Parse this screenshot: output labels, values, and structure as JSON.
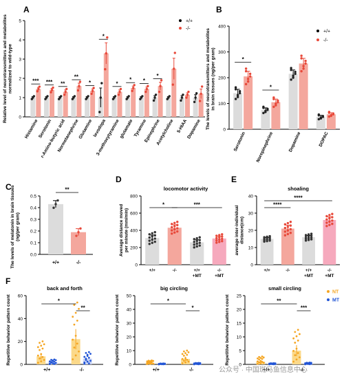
{
  "colors": {
    "wt": "#b3b3b3",
    "ko": "#e8493a",
    "nt": "#f5a623",
    "mt": "#2255d5",
    "mtfill": "#f6a9bd",
    "wtfill": "#dcdcdc",
    "ntfill": "#fbd98a"
  },
  "watermark": "公众号 · 中国斑马鱼信息中心",
  "chart_data": [
    {
      "panel": "A",
      "type": "bar",
      "ylabel": "Relative level of neurotransmitters and metabolites normalized to wild-type",
      "ylim": [
        0,
        5
      ],
      "yticks": [
        0,
        1,
        2,
        3,
        4,
        5
      ],
      "legend": [
        "+/+",
        "-/-"
      ],
      "categories": [
        "Histamine",
        "Serotonin",
        "r-Amino-butyric acid",
        "Normetanephrine",
        "Glutamine",
        "levodopa",
        "3-methoxytyramine",
        "glutamate",
        "Tyramine",
        "Epinephrine",
        "Acetylcholine",
        "5-HIAA",
        "Dopamine"
      ],
      "series": [
        {
          "name": "+/+",
          "values": [
            1,
            1,
            1,
            1,
            1,
            1,
            1,
            1,
            1,
            1,
            1,
            1,
            1
          ],
          "err": [
            0.05,
            0.05,
            0.05,
            0.05,
            0.05,
            0.5,
            0.05,
            0.05,
            0.05,
            0.1,
            0.05,
            0.1,
            0.15
          ]
        },
        {
          "name": "-/-",
          "values": [
            1.45,
            1.4,
            1.3,
            1.6,
            1.35,
            3.3,
            1.3,
            1.5,
            1.45,
            1.6,
            2.5,
            1.15,
            1.2
          ],
          "err": [
            0.08,
            0.08,
            0.1,
            0.15,
            0.1,
            0.55,
            0.1,
            0.1,
            0.1,
            0.2,
            0.55,
            0.1,
            0.25
          ]
        }
      ],
      "significance": [
        "***",
        "***",
        "**",
        "**",
        "*",
        "*",
        "*",
        "*",
        "*",
        "*",
        "",
        "",
        ""
      ]
    },
    {
      "panel": "B",
      "type": "bar",
      "ylabel": "The levels of neurotransmitters and metabolites in brain tissues (ng/per gram)",
      "ylim": [
        0,
        400
      ],
      "yticks": [
        0,
        100,
        200,
        300,
        400
      ],
      "legend": [
        "+/+",
        "-/-"
      ],
      "categories": [
        "Serotonin",
        "Norepinephrine",
        "Dopamine",
        "DOPAC"
      ],
      "series": [
        {
          "name": "+/+",
          "values": [
            140,
            75,
            215,
            48
          ],
          "err": [
            15,
            8,
            15,
            6
          ]
        },
        {
          "name": "-/-",
          "values": [
            205,
            105,
            255,
            58
          ],
          "err": [
            20,
            12,
            20,
            6
          ]
        }
      ],
      "significance": [
        "*",
        "*",
        "",
        ""
      ]
    },
    {
      "panel": "C",
      "type": "bar",
      "ylabel": "The levels of melatonin in brain tissues (ng/per gram)",
      "ylim": [
        0,
        0.5
      ],
      "yticks": [
        "0.0",
        "0.1",
        "0.2",
        "0.3",
        "0.4",
        "0.5"
      ],
      "categories": [
        "+/+",
        "-/-"
      ],
      "values": [
        0.43,
        0.19
      ],
      "err": [
        0.03,
        0.03
      ],
      "significance": "**"
    },
    {
      "panel": "D",
      "type": "bar",
      "title": "locomotor activity",
      "ylabel": "Average distance moved per minute (mm/min)",
      "ylim": [
        0,
        800
      ],
      "yticks": [
        0,
        200,
        400,
        600,
        800
      ],
      "categories": [
        "+/+",
        "-/-",
        "+/+ +MT",
        "-/- +MT"
      ],
      "values": [
        310,
        430,
        260,
        305
      ],
      "err": [
        35,
        35,
        30,
        25
      ],
      "significance": [
        {
          "from": 0,
          "to": 1,
          "label": "*"
        },
        {
          "from": 1,
          "to": 3,
          "label": "***"
        }
      ]
    },
    {
      "panel": "E",
      "type": "bar",
      "title": "shoaling",
      "ylabel": "average inter-individual distance(cm)",
      "ylim": [
        0,
        40
      ],
      "yticks": [
        0,
        10,
        20,
        30,
        40
      ],
      "categories": [
        "+/+",
        "-/-",
        "+/+ +MT",
        "-/- +MT"
      ],
      "values": [
        15,
        21,
        16,
        26
      ],
      "err": [
        0.8,
        2,
        1,
        1.8
      ],
      "significance": [
        {
          "from": 0,
          "to": 1,
          "label": "****"
        },
        {
          "from": 0,
          "to": 3,
          "label": "****"
        }
      ]
    },
    {
      "panel": "F",
      "type": "bar",
      "layout": "three-subplots",
      "ylabel": "Repetitive behavior pattern count",
      "legend": [
        "NT",
        "MT"
      ],
      "groups": [
        "+/+",
        "-/-"
      ],
      "subplots": [
        {
          "title": "back and forth",
          "ylim": [
            0,
            60
          ],
          "yticks": [
            0,
            20,
            40,
            60
          ],
          "NT": [
            7,
            22
          ],
          "MT": [
            2,
            5
          ],
          "significance": [
            {
              "label": "*"
            },
            {
              "label": "**"
            }
          ]
        },
        {
          "title": "big circling",
          "ylim": [
            0,
            50
          ],
          "yticks": [
            0,
            10,
            20,
            30,
            40,
            50
          ],
          "NT": [
            1,
            4
          ],
          "MT": [
            0.3,
            0.5
          ],
          "significance": [
            {
              "label": "*"
            },
            {
              "label": "*"
            }
          ]
        },
        {
          "title": "small circling",
          "ylim": [
            0,
            25
          ],
          "yticks": [
            0,
            5,
            10,
            15,
            20,
            25
          ],
          "NT": [
            1,
            5
          ],
          "MT": [
            0.2,
            0.3
          ],
          "significance": [
            {
              "label": "**"
            },
            {
              "label": "***"
            }
          ]
        }
      ]
    }
  ]
}
